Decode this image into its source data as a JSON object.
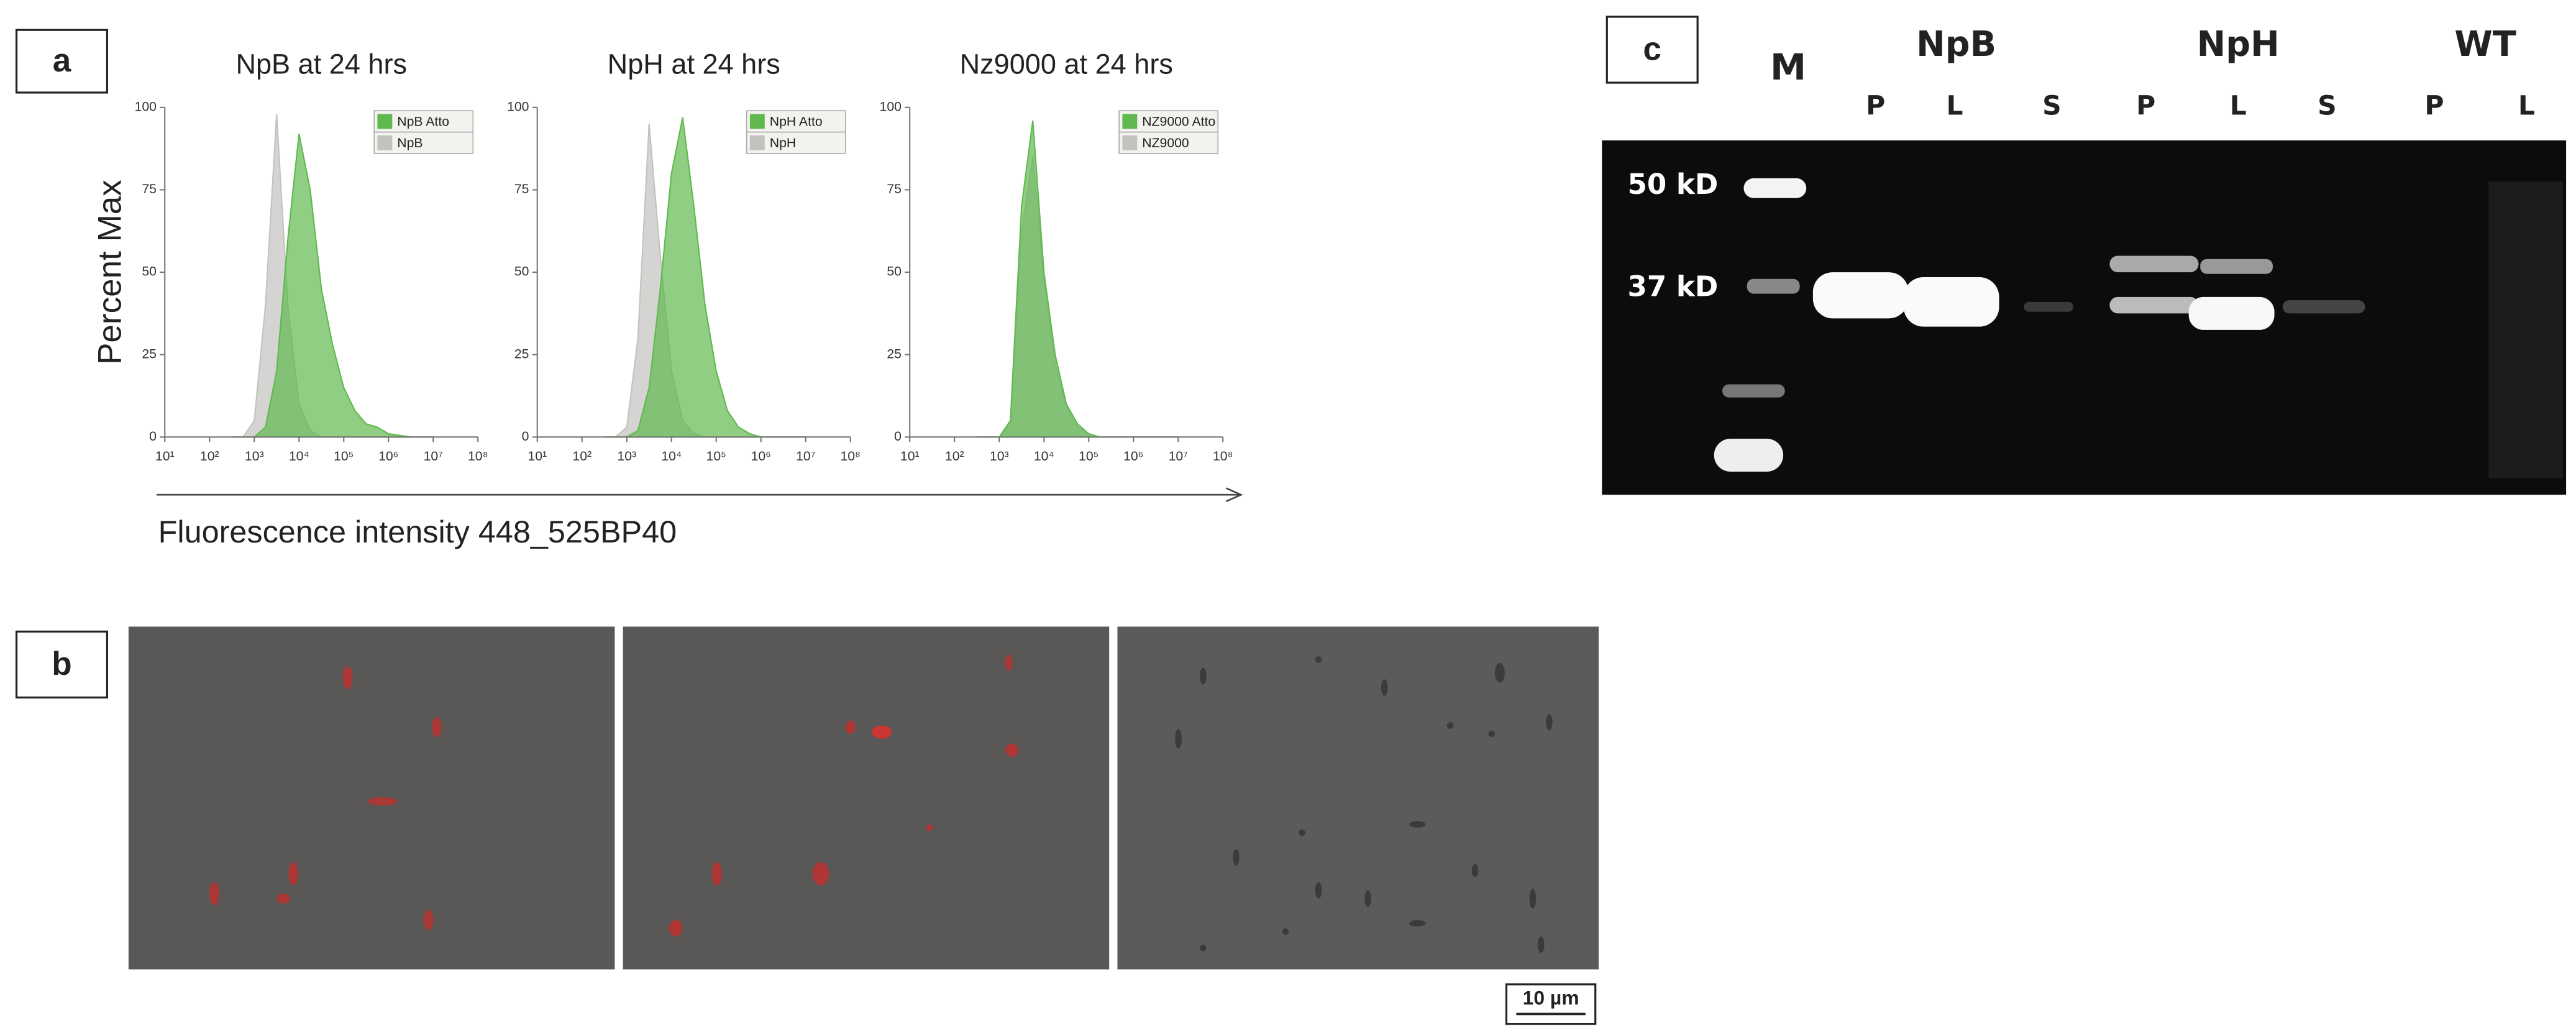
{
  "panel_labels": [
    "a",
    "b",
    "c"
  ],
  "figure_a": {
    "y_label": "Percent Max",
    "x_label": "Fluorescence intensity 448_525BP40"
  },
  "chart_data": [
    {
      "type": "area",
      "title": "NpB at 24 hrs",
      "log_x": true,
      "legend": "upper right",
      "grid": false,
      "x": [
        316,
        562,
        1000,
        1778,
        3162,
        5623,
        10000,
        17783,
        31623,
        56234,
        100000,
        177828,
        316228,
        562341,
        1000000,
        3162278,
        10000000
      ],
      "xlim": [
        10,
        100000000
      ],
      "xticks": [
        {
          "value": 10,
          "label": "10¹"
        },
        {
          "value": 100,
          "label": "10²"
        },
        {
          "value": 1000,
          "label": "10³"
        },
        {
          "value": 10000,
          "label": "10⁴"
        },
        {
          "value": 100000,
          "label": "10⁵"
        },
        {
          "value": 1000000,
          "label": "10⁶"
        },
        {
          "value": 10000000,
          "label": "10⁷"
        },
        {
          "value": 100000000,
          "label": "10⁸"
        }
      ],
      "ylim": [
        0,
        100
      ],
      "yticks": [
        0,
        25,
        50,
        75,
        100
      ],
      "series": [
        {
          "name": "NpB Atto",
          "color": "#5fb94f",
          "values": [
            0,
            0,
            0,
            3,
            20,
            60,
            92,
            75,
            45,
            28,
            15,
            8,
            4,
            3,
            1,
            0,
            0
          ]
        },
        {
          "name": "NpB",
          "color": "#c4c2bf",
          "values": [
            0,
            0,
            5,
            40,
            98,
            40,
            10,
            2,
            0,
            0,
            0,
            0,
            0,
            0,
            0,
            0,
            0
          ]
        }
      ]
    },
    {
      "type": "area",
      "title": "NpH at 24 hrs",
      "log_x": true,
      "legend": "upper right",
      "grid": false,
      "x": [
        316,
        562,
        1000,
        1778,
        3162,
        5623,
        10000,
        17783,
        31623,
        56234,
        100000,
        177828,
        316228,
        562341,
        1000000,
        3162278,
        10000000
      ],
      "xlim": [
        10,
        100000000
      ],
      "xticks": [
        {
          "value": 10,
          "label": "10¹"
        },
        {
          "value": 100,
          "label": "10²"
        },
        {
          "value": 1000,
          "label": "10³"
        },
        {
          "value": 10000,
          "label": "10⁴"
        },
        {
          "value": 100000,
          "label": "10⁵"
        },
        {
          "value": 1000000,
          "label": "10⁶"
        },
        {
          "value": 10000000,
          "label": "10⁷"
        },
        {
          "value": 100000000,
          "label": "10⁸"
        }
      ],
      "ylim": [
        0,
        100
      ],
      "yticks": [
        0,
        25,
        50,
        75,
        100
      ],
      "series": [
        {
          "name": "NpH Atto",
          "color": "#5fb94f",
          "values": [
            0,
            0,
            0,
            2,
            15,
            45,
            80,
            97,
            70,
            40,
            20,
            8,
            3,
            1,
            0,
            0,
            0
          ]
        },
        {
          "name": "NpH",
          "color": "#c4c2bf",
          "values": [
            0,
            0,
            3,
            30,
            95,
            55,
            20,
            5,
            1,
            0,
            0,
            0,
            0,
            0,
            0,
            0,
            0
          ]
        }
      ]
    },
    {
      "type": "area",
      "title": "Nz9000 at 24 hrs",
      "log_x": true,
      "legend": "upper right",
      "grid": false,
      "x": [
        316,
        562,
        1000,
        1778,
        3162,
        5623,
        10000,
        17783,
        31623,
        56234,
        100000,
        177828,
        316228,
        562341,
        1000000,
        3162278,
        10000000
      ],
      "xlim": [
        10,
        100000000
      ],
      "xticks": [
        {
          "value": 10,
          "label": "10¹"
        },
        {
          "value": 100,
          "label": "10²"
        },
        {
          "value": 1000,
          "label": "10³"
        },
        {
          "value": 10000,
          "label": "10⁴"
        },
        {
          "value": 100000,
          "label": "10⁵"
        },
        {
          "value": 1000000,
          "label": "10⁶"
        },
        {
          "value": 10000000,
          "label": "10⁷"
        },
        {
          "value": 100000000,
          "label": "10⁸"
        }
      ],
      "ylim": [
        0,
        100
      ],
      "yticks": [
        0,
        25,
        50,
        75,
        100
      ],
      "series": [
        {
          "name": "NZ9000 Atto",
          "color": "#5fb94f",
          "values": [
            0,
            0,
            0,
            5,
            70,
            96,
            50,
            25,
            10,
            4,
            1,
            0,
            0,
            0,
            0,
            0,
            0
          ]
        },
        {
          "name": "NZ9000",
          "color": "#c4c2bf",
          "values": [
            0,
            0,
            0,
            4,
            62,
            85,
            48,
            22,
            9,
            3,
            1,
            0,
            0,
            0,
            0,
            0,
            0
          ]
        }
      ]
    }
  ],
  "microscopy": {
    "scale_bar": "10 µm"
  },
  "blot": {
    "marker": "M",
    "groups": [
      {
        "name": "NpB",
        "lanes": [
          "P",
          "L",
          "S"
        ]
      },
      {
        "name": "NpH",
        "lanes": [
          "P",
          "L",
          "S"
        ]
      },
      {
        "name": "WT",
        "lanes": [
          "P",
          "L"
        ]
      }
    ],
    "size_labels": [
      "50 kD",
      "37 kD"
    ]
  }
}
